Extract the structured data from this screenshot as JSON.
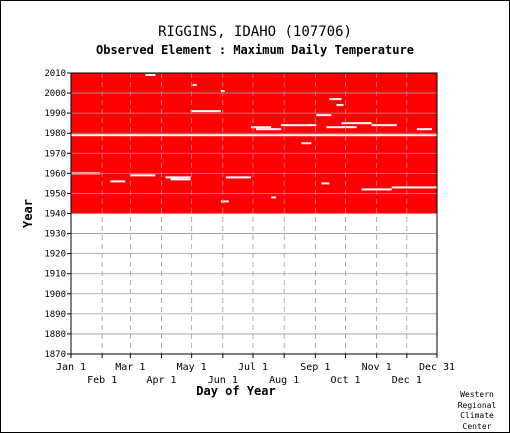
{
  "header": {
    "station": "RIGGINS, IDAHO   (107706)",
    "element": "Observed Element : Maximum Daily Temperature"
  },
  "credit": [
    "Western",
    "Regional",
    "Climate",
    "Center"
  ],
  "colors": {
    "data": "#ff0000",
    "background": "#ffffff",
    "grid": "#9a9a9a",
    "missing": "#ffffff"
  },
  "chart_data": {
    "type": "heatmap",
    "title": "RIGGINS, IDAHO   (107706)",
    "subtitle": "Observed Element : Maximum Daily Temperature",
    "xlabel": "Day of Year",
    "ylabel": "Year",
    "xlim": [
      1,
      365
    ],
    "ylim": [
      1870,
      2010
    ],
    "grid": true,
    "x_ticks_upper": [
      {
        "label": "Jan 1",
        "day": 1
      },
      {
        "label": "Mar 1",
        "day": 60
      },
      {
        "label": "May 1",
        "day": 121
      },
      {
        "label": "Jul 1",
        "day": 182
      },
      {
        "label": "Sep 1",
        "day": 244
      },
      {
        "label": "Nov 1",
        "day": 305
      },
      {
        "label": "Dec 31",
        "day": 365
      }
    ],
    "x_ticks_lower": [
      {
        "label": "Feb 1",
        "day": 32
      },
      {
        "label": "Apr 1",
        "day": 91
      },
      {
        "label": "Jun 1",
        "day": 152
      },
      {
        "label": "Aug 1",
        "day": 213
      },
      {
        "label": "Oct 1",
        "day": 274
      },
      {
        "label": "Dec 1",
        "day": 335
      }
    ],
    "y_ticks": [
      1870,
      1880,
      1890,
      1900,
      1910,
      1920,
      1930,
      1940,
      1950,
      1960,
      1970,
      1980,
      1990,
      2000,
      2010
    ],
    "observed_years": [
      1940,
      2010
    ],
    "missing": [
      {
        "year": 1979,
        "day_start": 1,
        "day_end": 365
      },
      {
        "year": 1960,
        "day_start": 1,
        "day_end": 30
      },
      {
        "year": 1959,
        "day_start": 60,
        "day_end": 85
      },
      {
        "year": 1958,
        "day_start": 95,
        "day_end": 120
      },
      {
        "year": 1958,
        "day_start": 155,
        "day_end": 180
      },
      {
        "year": 1957,
        "day_start": 100,
        "day_end": 120
      },
      {
        "year": 1956,
        "day_start": 40,
        "day_end": 55
      },
      {
        "year": 1953,
        "day_start": 320,
        "day_end": 365
      },
      {
        "year": 1952,
        "day_start": 290,
        "day_end": 320
      },
      {
        "year": 1983,
        "day_start": 180,
        "day_end": 200
      },
      {
        "year": 1982,
        "day_start": 185,
        "day_end": 210
      },
      {
        "year": 1984,
        "day_start": 210,
        "day_end": 245
      },
      {
        "year": 1984,
        "day_start": 300,
        "day_end": 325
      },
      {
        "year": 1983,
        "day_start": 255,
        "day_end": 285
      },
      {
        "year": 1982,
        "day_start": 345,
        "day_end": 360
      },
      {
        "year": 1991,
        "day_start": 120,
        "day_end": 150
      },
      {
        "year": 1989,
        "day_start": 245,
        "day_end": 260
      },
      {
        "year": 1985,
        "day_start": 270,
        "day_end": 300
      },
      {
        "year": 1975,
        "day_start": 230,
        "day_end": 240
      },
      {
        "year": 2009,
        "day_start": 75,
        "day_end": 85
      },
      {
        "year": 2004,
        "day_start": 122,
        "day_end": 126
      },
      {
        "year": 2001,
        "day_start": 150,
        "day_end": 154
      },
      {
        "year": 1997,
        "day_start": 258,
        "day_end": 270
      },
      {
        "year": 1994,
        "day_start": 265,
        "day_end": 272
      },
      {
        "year": 1946,
        "day_start": 150,
        "day_end": 158
      },
      {
        "year": 1948,
        "day_start": 200,
        "day_end": 205
      },
      {
        "year": 1955,
        "day_start": 250,
        "day_end": 258
      }
    ]
  }
}
